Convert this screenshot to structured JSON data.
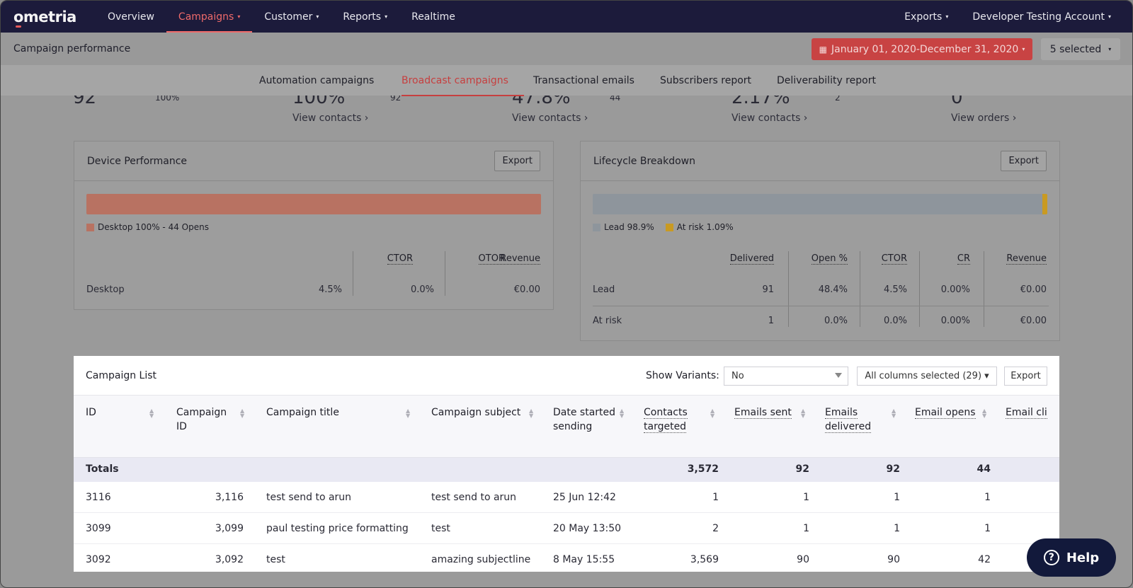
{
  "nav": {
    "logo": "ometria",
    "items": [
      "Overview",
      "Campaigns",
      "Customer",
      "Reports",
      "Realtime"
    ],
    "right": [
      "Exports",
      "Developer Testing Account"
    ],
    "caret": "▾"
  },
  "subheader": {
    "title": "Campaign performance",
    "date_range": "January 01, 2020-December 31, 2020",
    "selected": "5 selected",
    "calendar_icon": "▦"
  },
  "tabs": [
    "Automation campaigns",
    "Broadcast campaigns",
    "Transactional emails",
    "Subscribers report",
    "Deliverability report"
  ],
  "stats": {
    "big1": "92",
    "small1": "100%",
    "big2": "100%",
    "small2": "92",
    "big3": "47.8%",
    "small3": "44",
    "big4": "2.17%",
    "small4": "2",
    "big5": "0",
    "links": [
      "View contacts ›",
      "View contacts ›",
      "View contacts ›",
      "View orders ›"
    ]
  },
  "device": {
    "title": "Device Performance",
    "export": "Export",
    "legend": "Desktop 100% - 44 Opens",
    "share": 1.0,
    "headers": [
      "CTOR",
      "OTOR",
      "Revenue"
    ],
    "row": {
      "label": "Desktop",
      "ctor": "4.5%",
      "otor": "0.0%",
      "revenue": "€0.00"
    }
  },
  "lifecycle": {
    "title": "Lifecycle Breakdown",
    "export": "Export",
    "legend": [
      "Lead 98.9%",
      "At risk 1.09%"
    ],
    "shares": [
      0.989,
      0.0109
    ],
    "headers": [
      "Delivered",
      "Open %",
      "CTOR",
      "CR",
      "Revenue"
    ],
    "rows": [
      {
        "label": "Lead",
        "delivered": "91",
        "open": "48.4%",
        "ctor": "4.5%",
        "cr": "0.00%",
        "revenue": "€0.00"
      },
      {
        "label": "At risk",
        "delivered": "1",
        "open": "0.0%",
        "ctor": "0.0%",
        "cr": "0.00%",
        "revenue": "€0.00"
      }
    ]
  },
  "campaign_list": {
    "title": "Campaign List",
    "show_variants_label": "Show Variants:",
    "show_variants_value": "No",
    "columns_btn": "All columns selected (29) ▾",
    "export": "Export",
    "columns": [
      "ID",
      "Campaign ID",
      "Campaign title",
      "Campaign subject",
      "Date started sending",
      "Contacts targeted",
      "Emails sent",
      "Emails delivered",
      "Email opens",
      "Email cli"
    ],
    "totals": {
      "label": "Totals",
      "contacts": "3,572",
      "sent": "92",
      "delivered": "92",
      "opens": "44"
    },
    "rows": [
      {
        "id": "3116",
        "cid": "3,116",
        "title": "test send to arun",
        "subject": "test send to arun",
        "date": "25 Jun 12:42",
        "contacts": "1",
        "sent": "1",
        "delivered": "1",
        "opens": "1"
      },
      {
        "id": "3099",
        "cid": "3,099",
        "title": "paul testing price formatting",
        "subject": "test",
        "date": "20 May 13:50",
        "contacts": "2",
        "sent": "1",
        "delivered": "1",
        "opens": "1"
      },
      {
        "id": "3092",
        "cid": "3,092",
        "title": "test",
        "subject": "amazing subjectline",
        "date": "8 May 15:55",
        "contacts": "3,569",
        "sent": "90",
        "delivered": "90",
        "opens": "42"
      }
    ]
  },
  "help": {
    "label": "Help",
    "icon": "?"
  }
}
